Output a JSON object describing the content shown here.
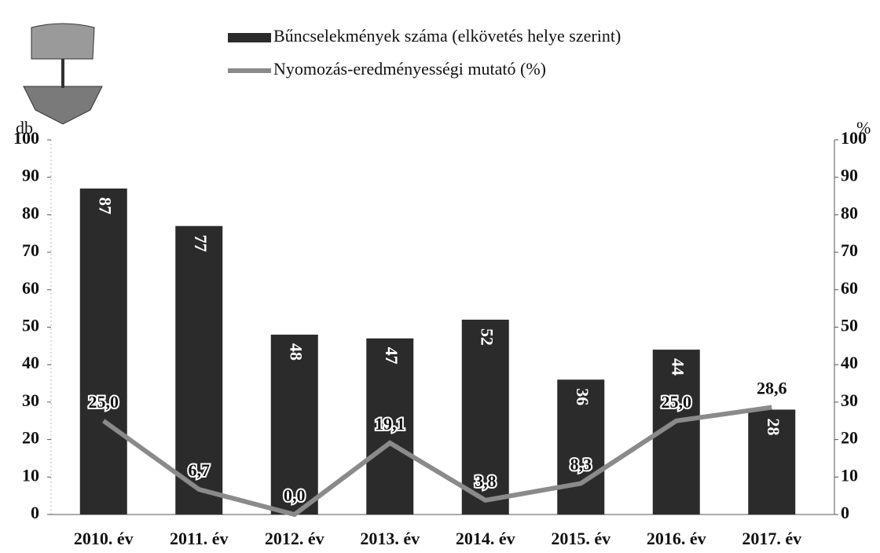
{
  "chart_data": {
    "type": "bar",
    "categories": [
      "2010. év",
      "2011. év",
      "2012. év",
      "2013. év",
      "2014. év",
      "2015. év",
      "2016. év",
      "2017. év"
    ],
    "series": [
      {
        "name": "Bűncselekmények száma (elkövetés helye szerint)",
        "type": "bar",
        "color": "#2b2b2b",
        "values": [
          87,
          77,
          48,
          47,
          52,
          36,
          44,
          28
        ]
      },
      {
        "name": "Nyomozás-eredményességi mutató (%)",
        "type": "line",
        "axis": "y2",
        "color": "#8a8a8a",
        "values": [
          25.0,
          6.7,
          0.0,
          19.1,
          3.8,
          8.3,
          25.0,
          28.6
        ],
        "value_labels": [
          "25,0",
          "6,7",
          "0,0",
          "19,1",
          "3,8",
          "8,3",
          "25,0",
          "28,6"
        ]
      }
    ],
    "ylabel": "db",
    "y2label": "%",
    "ylim": [
      0,
      100
    ],
    "yticks": [
      0,
      10,
      20,
      30,
      40,
      50,
      60,
      70,
      80,
      90,
      100
    ],
    "y2lim": [
      0,
      100
    ],
    "y2ticks": [
      0,
      10,
      20,
      30,
      40,
      50,
      60,
      70,
      80,
      90,
      100
    ]
  }
}
